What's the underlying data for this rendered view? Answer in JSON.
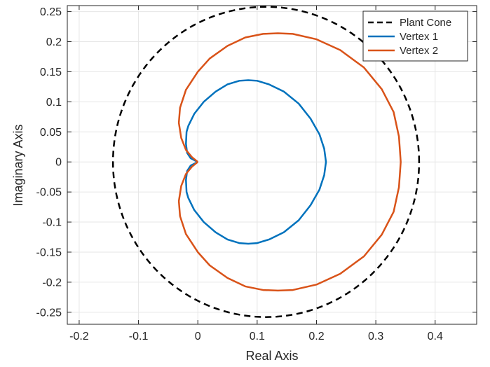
{
  "chart_data": {
    "type": "line",
    "title": "",
    "xlabel": "Real Axis",
    "ylabel": "Imaginary Axis",
    "xlim": [
      -0.22,
      0.47
    ],
    "ylim": [
      -0.27,
      0.26
    ],
    "xticks": [
      -0.2,
      -0.1,
      0,
      0.1,
      0.2,
      0.3,
      0.4
    ],
    "xtick_labels": [
      "-0.2",
      "-0.1",
      "0",
      "0.1",
      "0.2",
      "0.3",
      "0.4"
    ],
    "yticks": [
      -0.25,
      -0.2,
      -0.15,
      -0.1,
      -0.05,
      0,
      0.05,
      0.1,
      0.15,
      0.2,
      0.25
    ],
    "ytick_labels": [
      "-0.25",
      "-0.2",
      "-0.15",
      "-0.1",
      "-0.05",
      "0",
      "0.05",
      "0.1",
      "0.15",
      "0.2",
      "0.25"
    ],
    "grid": true,
    "legend_position": "top-right",
    "series": [
      {
        "name": "Plant Cone",
        "color": "#000000",
        "dash": "dashed",
        "shape": "circle",
        "center": [
          0.115,
          0
        ],
        "radius": 0.258
      },
      {
        "name": "Vertex 1",
        "color": "#0072BD",
        "dash": "solid",
        "x": [
          0,
          -0.012,
          -0.018,
          -0.02,
          -0.019,
          -0.016,
          -0.006,
          0.01,
          0.03,
          0.05,
          0.07,
          0.085,
          0.1,
          0.12,
          0.145,
          0.17,
          0.19,
          0.205,
          0.213,
          0.216,
          0.213,
          0.205,
          0.19,
          0.17,
          0.145,
          0.12,
          0.1,
          0.085,
          0.07,
          0.05,
          0.03,
          0.01,
          -0.006,
          -0.016,
          -0.019,
          -0.02,
          -0.018,
          -0.012,
          0
        ],
        "y": [
          0,
          0.006,
          0.015,
          0.03,
          0.05,
          0.06,
          0.08,
          0.1,
          0.117,
          0.129,
          0.135,
          0.136,
          0.135,
          0.129,
          0.117,
          0.097,
          0.072,
          0.046,
          0.022,
          0,
          -0.022,
          -0.046,
          -0.072,
          -0.097,
          -0.117,
          -0.129,
          -0.135,
          -0.136,
          -0.135,
          -0.129,
          -0.117,
          -0.1,
          -0.08,
          -0.06,
          -0.05,
          -0.03,
          -0.015,
          -0.006,
          0
        ]
      },
      {
        "name": "Vertex 2",
        "color": "#D95319",
        "dash": "solid",
        "x": [
          0,
          -0.01,
          -0.02,
          -0.028,
          -0.032,
          -0.03,
          -0.02,
          0,
          0.02,
          0.05,
          0.08,
          0.11,
          0.135,
          0.16,
          0.2,
          0.24,
          0.28,
          0.31,
          0.33,
          0.339,
          0.342,
          0.339,
          0.33,
          0.31,
          0.28,
          0.24,
          0.2,
          0.16,
          0.135,
          0.11,
          0.08,
          0.05,
          0.02,
          0,
          -0.02,
          -0.03,
          -0.032,
          -0.028,
          -0.02,
          -0.01,
          0
        ],
        "y": [
          0,
          0.008,
          0.02,
          0.04,
          0.065,
          0.09,
          0.12,
          0.15,
          0.172,
          0.193,
          0.207,
          0.213,
          0.214,
          0.213,
          0.204,
          0.186,
          0.157,
          0.121,
          0.083,
          0.042,
          0,
          -0.042,
          -0.083,
          -0.121,
          -0.157,
          -0.186,
          -0.204,
          -0.213,
          -0.214,
          -0.213,
          -0.207,
          -0.193,
          -0.172,
          -0.15,
          -0.12,
          -0.09,
          -0.065,
          -0.04,
          -0.02,
          -0.008,
          0
        ]
      }
    ]
  }
}
